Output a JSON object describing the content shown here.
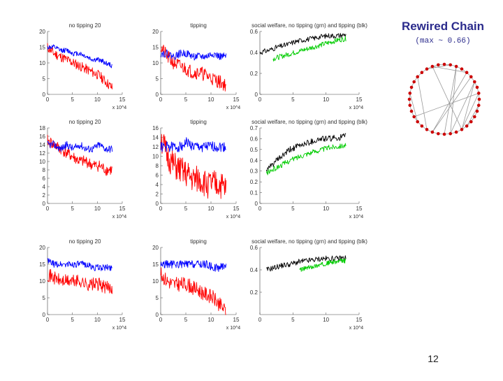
{
  "slide": {
    "title": "Rewired Chain",
    "subtitle": "(max ~ 0.66)",
    "page_number": "12"
  },
  "colors": {
    "series_a": "#ff0000",
    "series_b": "#0000ff",
    "series_c": "#000000",
    "series_d": "#00cc00",
    "graph_edge": "#999999",
    "graph_node": "#cc0000"
  },
  "chart_data": [
    {
      "type": "line",
      "title": "no tipping 20",
      "xlim": [
        0,
        15
      ],
      "ylim": [
        0,
        20
      ],
      "x_exponent_label": "x 10^4",
      "yticks": [
        "0",
        "5",
        "10",
        "15",
        "20"
      ],
      "xticks": [
        "0",
        "5",
        "10",
        "15"
      ],
      "series": [
        {
          "color": "red",
          "x_range": [
            0,
            13
          ],
          "base": [
            15,
            13,
            12,
            11,
            10,
            9,
            8,
            7,
            6,
            4,
            2
          ],
          "noise": 1.6,
          "seed": 11
        },
        {
          "color": "blue",
          "x_range": [
            0,
            13
          ],
          "base": [
            15,
            15,
            14,
            14,
            13,
            13,
            12,
            11,
            11,
            10,
            9
          ],
          "noise": 0.8,
          "seed": 12
        }
      ]
    },
    {
      "type": "line",
      "title": "tipping",
      "xlim": [
        0,
        15
      ],
      "ylim": [
        0,
        20
      ],
      "x_exponent_label": "x 10^4",
      "yticks": [
        "0",
        "5",
        "10",
        "15",
        "20"
      ],
      "xticks": [
        "0",
        "5",
        "10",
        "15"
      ],
      "series": [
        {
          "color": "red",
          "x_range": [
            0,
            13
          ],
          "base": [
            15,
            12,
            10,
            9,
            8,
            7,
            7,
            6,
            5,
            4,
            3
          ],
          "noise": 2.2,
          "seed": 21
        },
        {
          "color": "blue",
          "x_range": [
            0,
            13
          ],
          "base": [
            13,
            13,
            12,
            13,
            13,
            12,
            12,
            12,
            13,
            12,
            12
          ],
          "noise": 1.2,
          "seed": 22
        }
      ]
    },
    {
      "type": "line",
      "title": "social welfare, no tipping (grn) and tipping (blk)",
      "xlim": [
        0,
        15
      ],
      "ylim": [
        0,
        0.6
      ],
      "x_exponent_label": "x 10^4",
      "yticks": [
        "0",
        "0.2",
        "0.4",
        "0.6"
      ],
      "xticks": [
        "0",
        "5",
        "10",
        "15"
      ],
      "series": [
        {
          "color": "black",
          "x_range": [
            0,
            13
          ],
          "base": [
            0.4,
            0.42,
            0.45,
            0.47,
            0.5,
            0.52,
            0.53,
            0.55,
            0.56,
            0.56,
            0.57
          ],
          "noise": 0.025,
          "seed": 31
        },
        {
          "color": "green",
          "x_range": [
            2,
            13
          ],
          "base": [
            0.34,
            0.36,
            0.38,
            0.4,
            0.42,
            0.44,
            0.46,
            0.48,
            0.5,
            0.52,
            0.53
          ],
          "noise": 0.025,
          "seed": 32
        }
      ]
    },
    {
      "type": "line",
      "title": "no tipping 20",
      "xlim": [
        0,
        15
      ],
      "ylim": [
        0,
        18
      ],
      "x_exponent_label": "x 10^4",
      "yticks": [
        "0",
        "2",
        "4",
        "6",
        "8",
        "10",
        "12",
        "14",
        "16",
        "18"
      ],
      "xticks": [
        "0",
        "5",
        "10",
        "15"
      ],
      "series": [
        {
          "color": "red",
          "x_range": [
            0,
            13
          ],
          "base": [
            15,
            14,
            13,
            12,
            11,
            10,
            10,
            9,
            9,
            8,
            8
          ],
          "noise": 1.4,
          "seed": 41
        },
        {
          "color": "blue",
          "x_range": [
            0,
            13
          ],
          "base": [
            14,
            14,
            13,
            14,
            13,
            14,
            13,
            13,
            14,
            13,
            13
          ],
          "noise": 0.9,
          "seed": 42
        }
      ]
    },
    {
      "type": "line",
      "title": "tipping",
      "xlim": [
        0,
        15
      ],
      "ylim": [
        0,
        16
      ],
      "x_exponent_label": "x 10^4",
      "yticks": [
        "0",
        "2",
        "4",
        "6",
        "8",
        "10",
        "12",
        "14",
        "16"
      ],
      "xticks": [
        "0",
        "5",
        "10",
        "15"
      ],
      "series": [
        {
          "color": "red",
          "x_range": [
            0,
            13
          ],
          "base": [
            14,
            10,
            8,
            7,
            6,
            5,
            5,
            4,
            4,
            4,
            3
          ],
          "noise": 3.0,
          "seed": 51
        },
        {
          "color": "blue",
          "x_range": [
            0,
            13
          ],
          "base": [
            12,
            12,
            12,
            12,
            13,
            12,
            12,
            12,
            12,
            12,
            12
          ],
          "noise": 1.1,
          "seed": 52
        }
      ]
    },
    {
      "type": "line",
      "title": "social welfare, no tipping (grn) and tipping (blk)",
      "xlim": [
        0,
        15
      ],
      "ylim": [
        0,
        0.7
      ],
      "x_exponent_label": "x 10^4",
      "yticks": [
        "0",
        "0.1",
        "0.2",
        "0.3",
        "0.4",
        "0.5",
        "0.6",
        "0.7"
      ],
      "xticks": [
        "0",
        "5",
        "10",
        "15"
      ],
      "series": [
        {
          "color": "black",
          "x_range": [
            1,
            13
          ],
          "base": [
            0.3,
            0.38,
            0.44,
            0.5,
            0.53,
            0.56,
            0.58,
            0.6,
            0.6,
            0.61,
            0.62
          ],
          "noise": 0.03,
          "seed": 61
        },
        {
          "color": "green",
          "x_range": [
            1,
            13
          ],
          "base": [
            0.28,
            0.32,
            0.36,
            0.4,
            0.43,
            0.46,
            0.48,
            0.5,
            0.52,
            0.53,
            0.54
          ],
          "noise": 0.025,
          "seed": 62
        }
      ]
    },
    {
      "type": "line",
      "title": "no tipping 20",
      "xlim": [
        0,
        15
      ],
      "ylim": [
        0,
        20
      ],
      "x_exponent_label": "x 10^4",
      "yticks": [
        "0",
        "5",
        "10",
        "15",
        "20"
      ],
      "xticks": [
        "0",
        "5",
        "10",
        "15"
      ],
      "series": [
        {
          "color": "red",
          "x_range": [
            0,
            13
          ],
          "base": [
            12,
            11,
            10,
            10,
            10,
            10,
            9,
            9,
            9,
            8,
            8
          ],
          "noise": 2.0,
          "seed": 71
        },
        {
          "color": "blue",
          "x_range": [
            0,
            13
          ],
          "base": [
            16,
            15,
            15,
            15,
            15,
            15,
            15,
            14,
            14,
            14,
            14
          ],
          "noise": 1.0,
          "seed": 72
        }
      ]
    },
    {
      "type": "line",
      "title": "tipping",
      "xlim": [
        0,
        15
      ],
      "ylim": [
        0,
        20
      ],
      "x_exponent_label": "x 10^4",
      "yticks": [
        "0",
        "5",
        "10",
        "15",
        "20"
      ],
      "xticks": [
        "0",
        "5",
        "10",
        "15"
      ],
      "series": [
        {
          "color": "red",
          "x_range": [
            0,
            13
          ],
          "base": [
            12,
            10,
            9,
            9,
            9,
            8,
            7,
            6,
            5,
            3,
            1
          ],
          "noise": 2.2,
          "seed": 81
        },
        {
          "color": "blue",
          "x_range": [
            0,
            13
          ],
          "base": [
            15,
            15,
            15,
            15,
            15,
            15,
            15,
            15,
            14,
            14,
            15
          ],
          "noise": 1.2,
          "seed": 82
        }
      ]
    },
    {
      "type": "line",
      "title": "social welfare, no tipping (grn) and tipping (blk)",
      "xlim": [
        0,
        15
      ],
      "ylim": [
        0,
        0.6
      ],
      "x_exponent_label": "x 10^4",
      "yticks": [
        "0.2",
        "0.4",
        "0.6"
      ],
      "xticks": [
        "0",
        "5",
        "10",
        "15"
      ],
      "series": [
        {
          "color": "black",
          "x_range": [
            1,
            13
          ],
          "base": [
            0.4,
            0.42,
            0.44,
            0.45,
            0.47,
            0.48,
            0.49,
            0.5,
            0.5,
            0.5,
            0.51
          ],
          "noise": 0.025,
          "seed": 91
        },
        {
          "color": "green",
          "x_range": [
            6,
            13
          ],
          "base": [
            0.4,
            0.41,
            0.42,
            0.43,
            0.44,
            0.45,
            0.46,
            0.47,
            0.47,
            0.48,
            0.48
          ],
          "noise": 0.02,
          "seed": 92
        }
      ]
    }
  ],
  "graph": {
    "nodes": 36,
    "seed": 7,
    "shortcuts": 14
  }
}
